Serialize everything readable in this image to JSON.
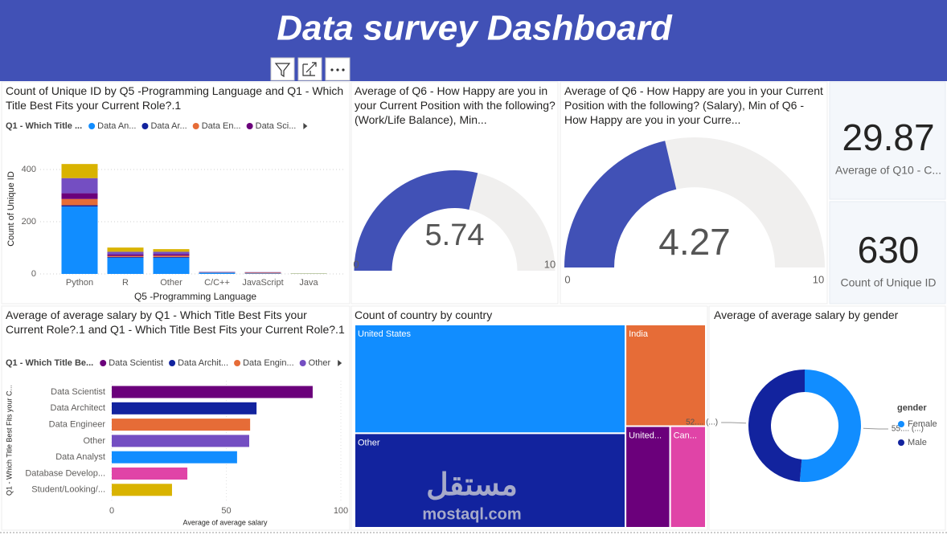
{
  "header": {
    "title": "Data survey Dashboard"
  },
  "watermark": {
    "arabic": "مستقل",
    "latin": "mostaql.com"
  },
  "chart_data": [
    {
      "type": "bar",
      "orientation": "vertical",
      "stacked": true,
      "title": "Count of Unique ID by Q5 -Programming Language and Q1 - Which Title Best Fits your Current Role?.1",
      "legend_title": "Q1 - Which Title ...",
      "x_label": "Q5 -Programming Language",
      "y_label": "Count of Unique ID",
      "categories": [
        "Python",
        "R",
        "Other",
        "C/C++",
        "JavaScript",
        "Java"
      ],
      "series": [
        {
          "name": "Data An...",
          "color": "#118DFF",
          "values": [
            258,
            62,
            62,
            5,
            2,
            1
          ]
        },
        {
          "name": "Data Ar...",
          "color": "#12239E",
          "values": [
            5,
            3,
            3,
            0,
            0,
            0
          ]
        },
        {
          "name": "Data En...",
          "color": "#E66C37",
          "values": [
            24,
            4,
            5,
            1,
            3,
            0
          ]
        },
        {
          "name": "Data Sci...",
          "color": "#6B007B",
          "values": [
            22,
            6,
            6,
            1,
            0,
            0
          ]
        },
        {
          "name": null,
          "color": "#744EC2",
          "values": [
            58,
            10,
            9,
            1,
            2,
            0
          ]
        },
        {
          "name": null,
          "color": "#D9B300",
          "values": [
            54,
            16,
            10,
            0,
            0,
            1
          ]
        }
      ],
      "ylim": [
        0,
        440
      ],
      "yticks": [
        0,
        200,
        400
      ],
      "grid": true
    },
    {
      "type": "gauge",
      "title": "Average of Q6 - How Happy are you in your Current Position with the following? (Work/Life Balance), Min...",
      "value": 5.74,
      "min": 0,
      "max": 10,
      "color": "#4151B6"
    },
    {
      "type": "gauge",
      "title": "Average of Q6 - How Happy are you in your Current Position with the following? (Salary), Min of Q6 - How Happy are you in your Curre...",
      "value": 4.27,
      "min": 0,
      "max": 10,
      "color": "#4151B6"
    },
    {
      "type": "card",
      "value": 29.87,
      "label": "Average of Q10 - C..."
    },
    {
      "type": "card",
      "value": 630,
      "label": "Count of Unique ID"
    },
    {
      "type": "bar",
      "orientation": "horizontal",
      "title": "Average of average salary by Q1 - Which Title Best Fits your Current Role?.1 and Q1 - Which Title Best Fits your Current Role?.1",
      "legend_title": "Q1 - Which Title Be...",
      "legend_items": [
        "Data Scientist",
        "Data Archit...",
        "Data Engin...",
        "Other"
      ],
      "x_label": "Average of average salary",
      "y_label": "Q1 - Which Title Best Fits your C...",
      "categories": [
        "Data Scientist",
        "Data Architect",
        "Data Engineer",
        "Other",
        "Data Analyst",
        "Database Develop...",
        "Student/Looking/..."
      ],
      "values": [
        87.7,
        63.2,
        60.4,
        60,
        54.7,
        33,
        26.3
      ],
      "colors": [
        "#6B007B",
        "#12239E",
        "#E66C37",
        "#744EC2",
        "#118DFF",
        "#E044A7",
        "#D9B300"
      ],
      "xlim": [
        0,
        100
      ],
      "xticks": [
        0,
        50,
        100
      ],
      "grid": true
    },
    {
      "type": "treemap",
      "title": "Count of country by country",
      "categories": [
        "United States",
        "Other",
        "India",
        "United...",
        "Can..."
      ],
      "values": [
        260,
        226,
        72,
        40,
        32
      ],
      "colors": [
        "#118DFF",
        "#12239E",
        "#E66C37",
        "#6B007B",
        "#E044A7"
      ]
    },
    {
      "type": "donut",
      "title": "Average of average salary by gender",
      "legend_title": "gender",
      "categories": [
        "Female",
        "Male"
      ],
      "values": [
        55,
        52
      ],
      "value_labels": [
        "55.... (...)",
        "52.... (...)"
      ],
      "colors": [
        "#118DFF",
        "#12239E"
      ]
    }
  ]
}
